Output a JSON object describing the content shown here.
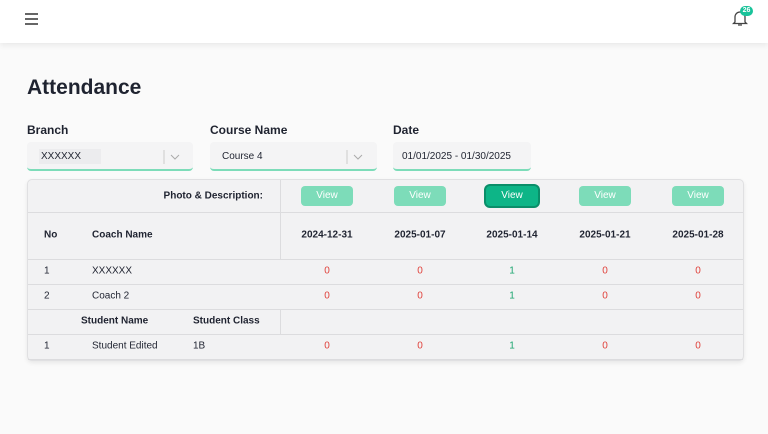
{
  "header": {
    "notification_count": 26
  },
  "title": "Attendance",
  "filters": [
    {
      "label": "Branch",
      "value": "XXXXXX"
    },
    {
      "label": "Course Name",
      "value": "Course 4"
    },
    {
      "label": "Date",
      "value": "01/01/2025 - 01/30/2025"
    }
  ],
  "table": {
    "photo_label": "Photo & Description:",
    "view_buttons": [
      "View",
      "View",
      "View",
      "View",
      "View"
    ],
    "active_view": 2,
    "columns": {
      "no": "No",
      "coach_name": "Coach Name",
      "dates": [
        "2024-12-31",
        "2025-01-07",
        "2025-01-14",
        "2025-01-21",
        "2025-01-28"
      ]
    },
    "coaches": [
      {
        "no": 1,
        "name": "XXXXXX",
        "values": [
          0,
          0,
          1,
          0,
          0
        ]
      },
      {
        "no": 2,
        "name": "Coach 2",
        "values": [
          0,
          0,
          1,
          0,
          0
        ]
      }
    ],
    "student_header": {
      "name": "Student Name",
      "class": "Student Class"
    },
    "students": [
      {
        "no": 1,
        "name": "Student Edited",
        "class": "1B",
        "values": [
          0,
          0,
          1,
          0,
          0
        ]
      }
    ]
  }
}
